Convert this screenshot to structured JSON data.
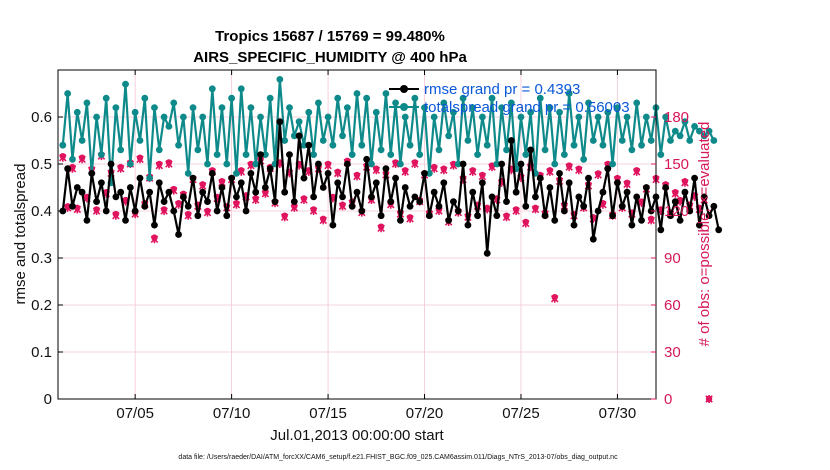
{
  "colors": {
    "rmse": "#000000",
    "spread": "#0f8a8a",
    "obs": "#e0145e",
    "legend_text": "#0b58d8",
    "grid": "#f2c6d6"
  },
  "chart_data": {
    "type": "line",
    "title": "Tropics 15687 / 15769 = 99.480%",
    "subtitle": "AIRS_SPECIFIC_HUMIDITY @ 400 hPa",
    "xlabel": "Jul.01,2013 00:00:00 start",
    "ylabel": "rmse and totalspread",
    "ylabel_right": "# of obs: o=possible; ×=evaluated",
    "x_tick_labels": [
      "07/05",
      "07/10",
      "07/15",
      "07/20",
      "07/25",
      "07/30"
    ],
    "x_tick_days": [
      5,
      10,
      15,
      20,
      25,
      30
    ],
    "xlim_days": [
      1,
      32
    ],
    "ylim": [
      0,
      0.7
    ],
    "y_ticks": [
      "0",
      "0.1",
      "0.2",
      "0.3",
      "0.4",
      "0.5",
      "0.6"
    ],
    "ylim_right": [
      0,
      210
    ],
    "y_ticks_right": [
      "0",
      "30",
      "60",
      "90",
      "120",
      "150",
      "180"
    ],
    "legend": [
      {
        "label": "rmse grand pr = 0.4393"
      },
      {
        "label": "totalspread grand pr = 0.56003"
      }
    ],
    "series": [
      {
        "name": "rmse",
        "start_day": 1.25,
        "step_days": 0.25,
        "values": [
          0.4,
          0.49,
          0.41,
          0.45,
          0.44,
          0.38,
          0.48,
          0.42,
          0.46,
          0.4,
          0.5,
          0.43,
          0.44,
          0.38,
          0.45,
          0.4,
          0.47,
          0.41,
          0.44,
          0.37,
          0.46,
          0.42,
          0.44,
          0.4,
          0.35,
          0.43,
          0.41,
          0.47,
          0.39,
          0.44,
          0.42,
          0.48,
          0.4,
          0.45,
          0.39,
          0.47,
          0.43,
          0.46,
          0.4,
          0.48,
          0.44,
          0.52,
          0.45,
          0.49,
          0.42,
          0.59,
          0.44,
          0.52,
          0.42,
          0.56,
          0.47,
          0.54,
          0.43,
          0.5,
          0.45,
          0.48,
          0.37,
          0.46,
          0.43,
          0.5,
          0.41,
          0.44,
          0.4,
          0.51,
          0.43,
          0.46,
          0.39,
          0.49,
          0.42,
          0.47,
          0.38,
          0.45,
          0.41,
          0.43,
          0.42,
          0.48,
          0.39,
          0.44,
          0.41,
          0.46,
          0.38,
          0.42,
          0.4,
          0.5,
          0.37,
          0.44,
          0.39,
          0.46,
          0.31,
          0.43,
          0.39,
          0.5,
          0.42,
          0.55,
          0.44,
          0.5,
          0.41,
          0.53,
          0.43,
          0.47,
          0.39,
          0.45,
          0.38,
          0.48,
          0.4,
          0.46,
          0.37,
          0.43,
          0.41,
          0.47,
          0.34,
          0.4,
          0.44,
          0.49,
          0.39,
          0.46,
          0.41,
          0.44,
          0.37,
          0.43,
          0.38,
          0.45,
          0.4,
          0.43,
          0.36,
          0.45,
          0.39,
          0.42,
          0.38,
          0.44,
          0.4,
          0.47,
          0.37,
          0.43,
          0.39,
          0.41,
          0.36
        ]
      },
      {
        "name": "totalspread",
        "start_day": 1.25,
        "step_days": 0.25,
        "values": [
          0.54,
          0.65,
          0.51,
          0.61,
          0.55,
          0.63,
          0.48,
          0.6,
          0.52,
          0.64,
          0.46,
          0.62,
          0.53,
          0.67,
          0.5,
          0.61,
          0.55,
          0.64,
          0.47,
          0.62,
          0.53,
          0.6,
          0.58,
          0.63,
          0.54,
          0.6,
          0.48,
          0.62,
          0.53,
          0.6,
          0.5,
          0.66,
          0.52,
          0.62,
          0.5,
          0.64,
          0.48,
          0.66,
          0.52,
          0.62,
          0.5,
          0.6,
          0.52,
          0.64,
          0.5,
          0.68,
          0.55,
          0.62,
          0.56,
          0.59,
          0.54,
          0.61,
          0.52,
          0.63,
          0.55,
          0.6,
          0.54,
          0.64,
          0.56,
          0.62,
          0.52,
          0.65,
          0.54,
          0.64,
          0.5,
          0.61,
          0.53,
          0.65,
          0.52,
          0.63,
          0.5,
          0.6,
          0.54,
          0.64,
          0.52,
          0.62,
          0.48,
          0.6,
          0.53,
          0.63,
          0.56,
          0.61,
          0.5,
          0.64,
          0.55,
          0.62,
          0.52,
          0.6,
          0.54,
          0.64,
          0.5,
          0.62,
          0.53,
          0.63,
          0.49,
          0.6,
          0.52,
          0.61,
          0.48,
          0.64,
          0.53,
          0.62,
          0.5,
          0.61,
          0.52,
          0.65,
          0.54,
          0.6,
          0.51,
          0.63,
          0.55,
          0.6,
          0.54,
          0.61,
          0.5,
          0.62,
          0.55,
          0.6,
          0.53,
          0.63,
          0.54,
          0.6,
          0.55,
          0.62,
          0.52,
          0.6,
          0.55,
          0.57,
          0.56,
          0.59,
          0.55,
          0.58,
          0.57,
          0.56,
          0.57,
          0.55
        ]
      },
      {
        "name": "obs_possible",
        "axis": "right",
        "start_day": 1.25,
        "step_days": 0.25,
        "values": [
          155,
          123,
          148,
          122,
          154,
          129,
          147,
          121,
          156,
          132,
          145,
          118,
          148,
          127,
          151,
          119,
          154,
          125,
          142,
          103,
          150,
          121,
          151,
          134,
          125,
          131,
          118,
          141,
          124,
          137,
          120,
          146,
          129,
          139,
          123,
          141,
          125,
          146,
          130,
          150,
          128,
          153,
          132,
          148,
          126,
          151,
          117,
          145,
          123,
          150,
          128,
          146,
          121,
          148,
          115,
          150,
          129,
          145,
          124,
          152,
          126,
          143,
          120,
          149,
          128,
          147,
          110,
          144,
          125,
          151,
          119,
          146,
          116,
          151,
          127,
          144,
          119,
          148,
          121,
          147,
          114,
          150,
          120,
          141,
          117,
          146,
          124,
          143,
          122,
          149,
          128,
          139,
          117,
          147,
          121,
          142,
          113,
          149,
          122,
          143,
          119,
          146,
          65,
          140,
          124,
          149,
          118,
          147,
          123,
          137,
          116,
          144,
          125,
          150,
          118,
          141,
          123,
          138,
          119,
          146,
          126,
          135,
          115,
          141,
          121,
          137,
          119,
          132,
          127,
          139,
          124,
          130,
          122,
          128,
          0
        ]
      },
      {
        "name": "obs_evaluated",
        "axis": "right",
        "start_day": 1.25,
        "step_days": 0.25,
        "values": [
          154,
          122,
          147,
          121,
          153,
          128,
          146,
          120,
          155,
          131,
          144,
          117,
          147,
          126,
          150,
          118,
          153,
          124,
          141,
          102,
          149,
          120,
          150,
          133,
          124,
          130,
          117,
          140,
          123,
          136,
          119,
          145,
          128,
          138,
          122,
          140,
          124,
          145,
          129,
          149,
          127,
          152,
          131,
          147,
          125,
          150,
          116,
          144,
          122,
          149,
          127,
          145,
          120,
          147,
          114,
          149,
          128,
          144,
          123,
          151,
          125,
          142,
          119,
          148,
          127,
          146,
          109,
          143,
          124,
          150,
          118,
          145,
          115,
          150,
          126,
          143,
          118,
          147,
          120,
          146,
          113,
          149,
          119,
          140,
          116,
          145,
          123,
          142,
          121,
          148,
          127,
          138,
          116,
          146,
          120,
          141,
          112,
          148,
          121,
          142,
          118,
          145,
          64,
          139,
          123,
          148,
          117,
          146,
          122,
          136,
          115,
          143,
          124,
          149,
          117,
          140,
          122,
          137,
          118,
          145,
          125,
          134,
          114,
          140,
          120,
          136,
          118,
          131,
          126,
          138,
          123,
          129,
          121,
          127,
          0
        ]
      }
    ],
    "footnote": "data file: /Users/raeder/DAI/ATM_forcXX/CAM6_setup/f.e21.FHIST_BGC.f09_025.CAM6assim.011/Diags_NTrS_2013-07/obs_diag_output.nc"
  }
}
